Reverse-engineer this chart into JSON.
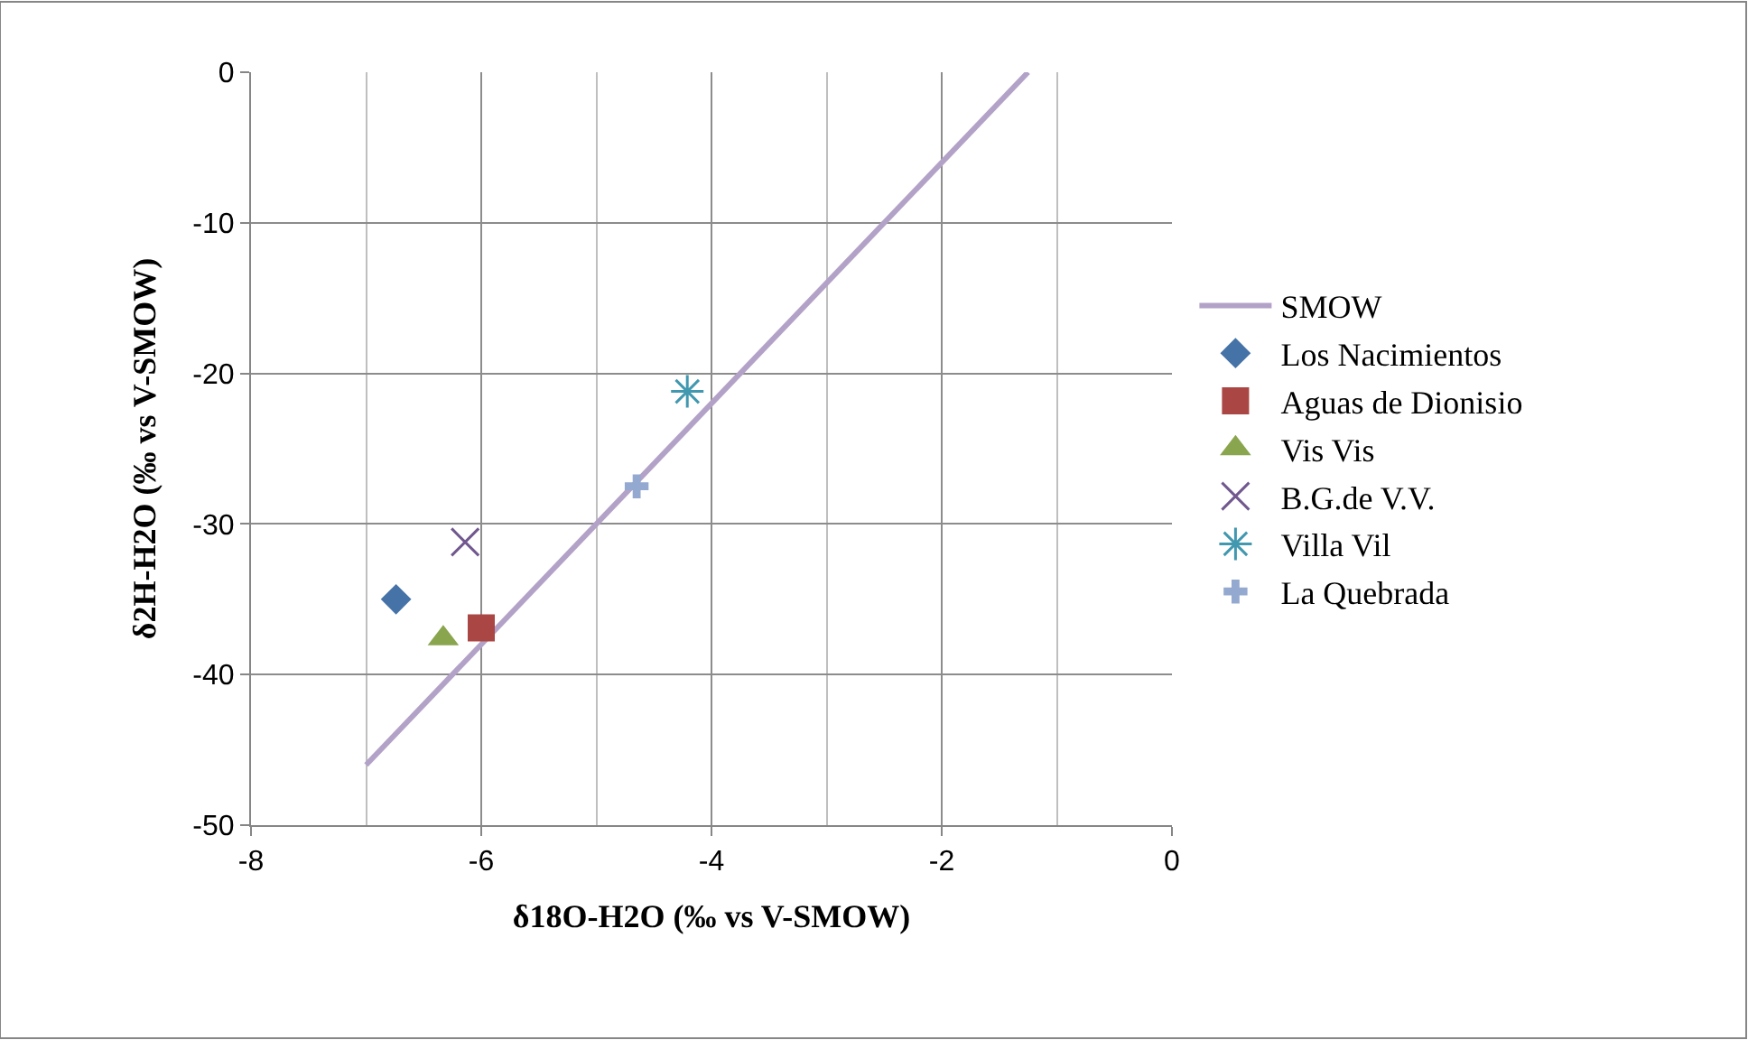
{
  "chart_data": {
    "type": "scatter",
    "xlabel": "δ18O-H2O (‰ vs V-SMOW)",
    "ylabel": "δ2H-H2O (‰ vs V-SMOW)",
    "xlim": [
      -8,
      0
    ],
    "xticks": [
      -8,
      -6,
      -4,
      -2,
      0
    ],
    "ylim": [
      -50,
      0
    ],
    "yticks": [
      -50,
      -40,
      -30,
      -20,
      -10,
      0
    ],
    "grid": true,
    "legend": "right",
    "series": [
      {
        "name": "SMOW",
        "type": "line",
        "color": "#b3a2c7",
        "x": [
          -7,
          -1.25
        ],
        "values": [
          -46,
          0
        ],
        "marker": "none",
        "line_style": "solid"
      },
      {
        "name": "Los Nacimientos",
        "color": "#4572a7",
        "x": [
          -6.74
        ],
        "values": [
          -35.0
        ],
        "marker": "diamond"
      },
      {
        "name": "Aguas de Dionisio",
        "color": "#aa4643",
        "x": [
          -6.0
        ],
        "values": [
          -36.9
        ],
        "marker": "square"
      },
      {
        "name": "Vis Vis",
        "color": "#89a54e",
        "x": [
          -6.33
        ],
        "values": [
          -37.6
        ],
        "marker": "triangle"
      },
      {
        "name": "B.G.de V.V.",
        "color": "#71588f",
        "x": [
          -6.14
        ],
        "values": [
          -31.2
        ],
        "marker": "cross"
      },
      {
        "name": "Villa Vil",
        "color": "#4198af",
        "x": [
          -4.21
        ],
        "values": [
          -21.2
        ],
        "marker": "cross"
      },
      {
        "name": "La Quebrada",
        "color": "#93a9cf",
        "x": [
          -4.65
        ],
        "values": [
          -27.5
        ],
        "marker": "cross"
      }
    ]
  }
}
